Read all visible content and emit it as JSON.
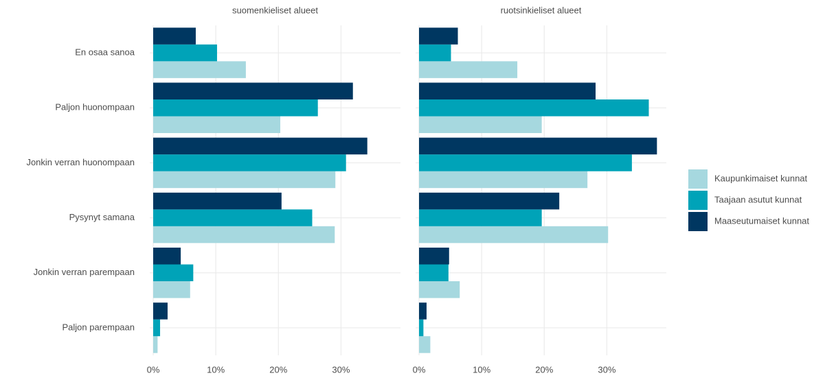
{
  "chart_data": {
    "type": "bar",
    "orientation": "horizontal",
    "categories": [
      "En osaa sanoa",
      "Paljon huonompaan",
      "Jonkin verran huonompaan",
      "Pysynyt samana",
      "Jonkin verran parempaan",
      "Paljon parempaan"
    ],
    "series": [
      {
        "name": "Kaupunkimaiset kunnat",
        "color": "#a6d8df"
      },
      {
        "name": "Taajaan asutut kunnat",
        "color": "#00a3b8"
      },
      {
        "name": "Maaseutumaiset kunnat",
        "color": "#003761"
      }
    ],
    "panels": [
      {
        "title": "suomenkieliset alueet",
        "values": [
          [
            14.8,
            20.3,
            29.1,
            29.0,
            5.9,
            0.7
          ],
          [
            10.2,
            26.3,
            30.8,
            25.4,
            6.4,
            1.1
          ],
          [
            6.8,
            31.9,
            34.2,
            20.5,
            4.4,
            2.3
          ]
        ]
      },
      {
        "title": "ruotsinkieliset alueet",
        "values": [
          [
            15.7,
            19.6,
            26.9,
            30.2,
            6.5,
            1.8
          ],
          [
            5.1,
            36.7,
            34.0,
            19.6,
            4.7,
            0.7
          ],
          [
            6.2,
            28.2,
            38.0,
            22.4,
            4.8,
            1.2
          ]
        ]
      }
    ],
    "xlim": [
      -0.55,
      39.5
    ],
    "xticks": [
      {
        "value": 0,
        "label": "0%"
      },
      {
        "value": 10,
        "label": "10%"
      },
      {
        "value": 20,
        "label": "20%"
      },
      {
        "value": 30,
        "label": "30%"
      }
    ],
    "grid": true,
    "legend": "right"
  }
}
